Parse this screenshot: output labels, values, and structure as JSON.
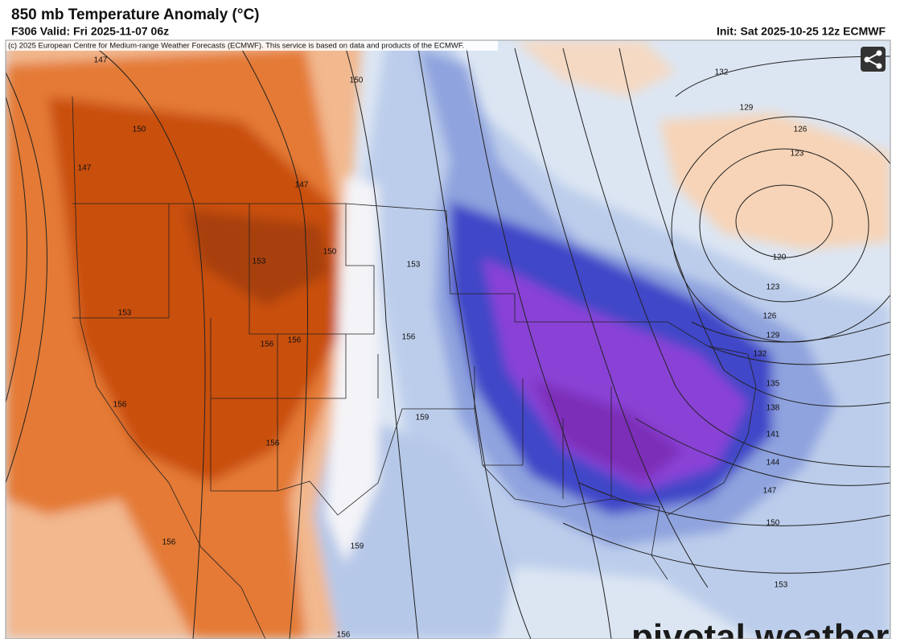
{
  "header": {
    "title": "850 mb Temperature Anomaly (°C)",
    "valid": "F306 Valid: Fri 2025-11-07 06z",
    "init": "Init: Sat 2025-10-25 12z ECMWF"
  },
  "map": {
    "credit": "(c) 2025 European Centre for Medium-range Weather Forecasts (ECMWF). This service is based on data and products of the ECMWF.",
    "contour_labels": [
      147,
      150,
      147,
      147,
      150,
      150,
      153,
      153,
      153,
      156,
      156,
      156,
      156,
      156,
      159,
      156,
      159,
      156,
      132,
      129,
      126,
      123,
      120,
      123,
      126,
      129,
      132,
      135,
      138,
      141,
      144,
      147,
      150,
      153
    ],
    "watermark": "pivotal weather"
  }
}
